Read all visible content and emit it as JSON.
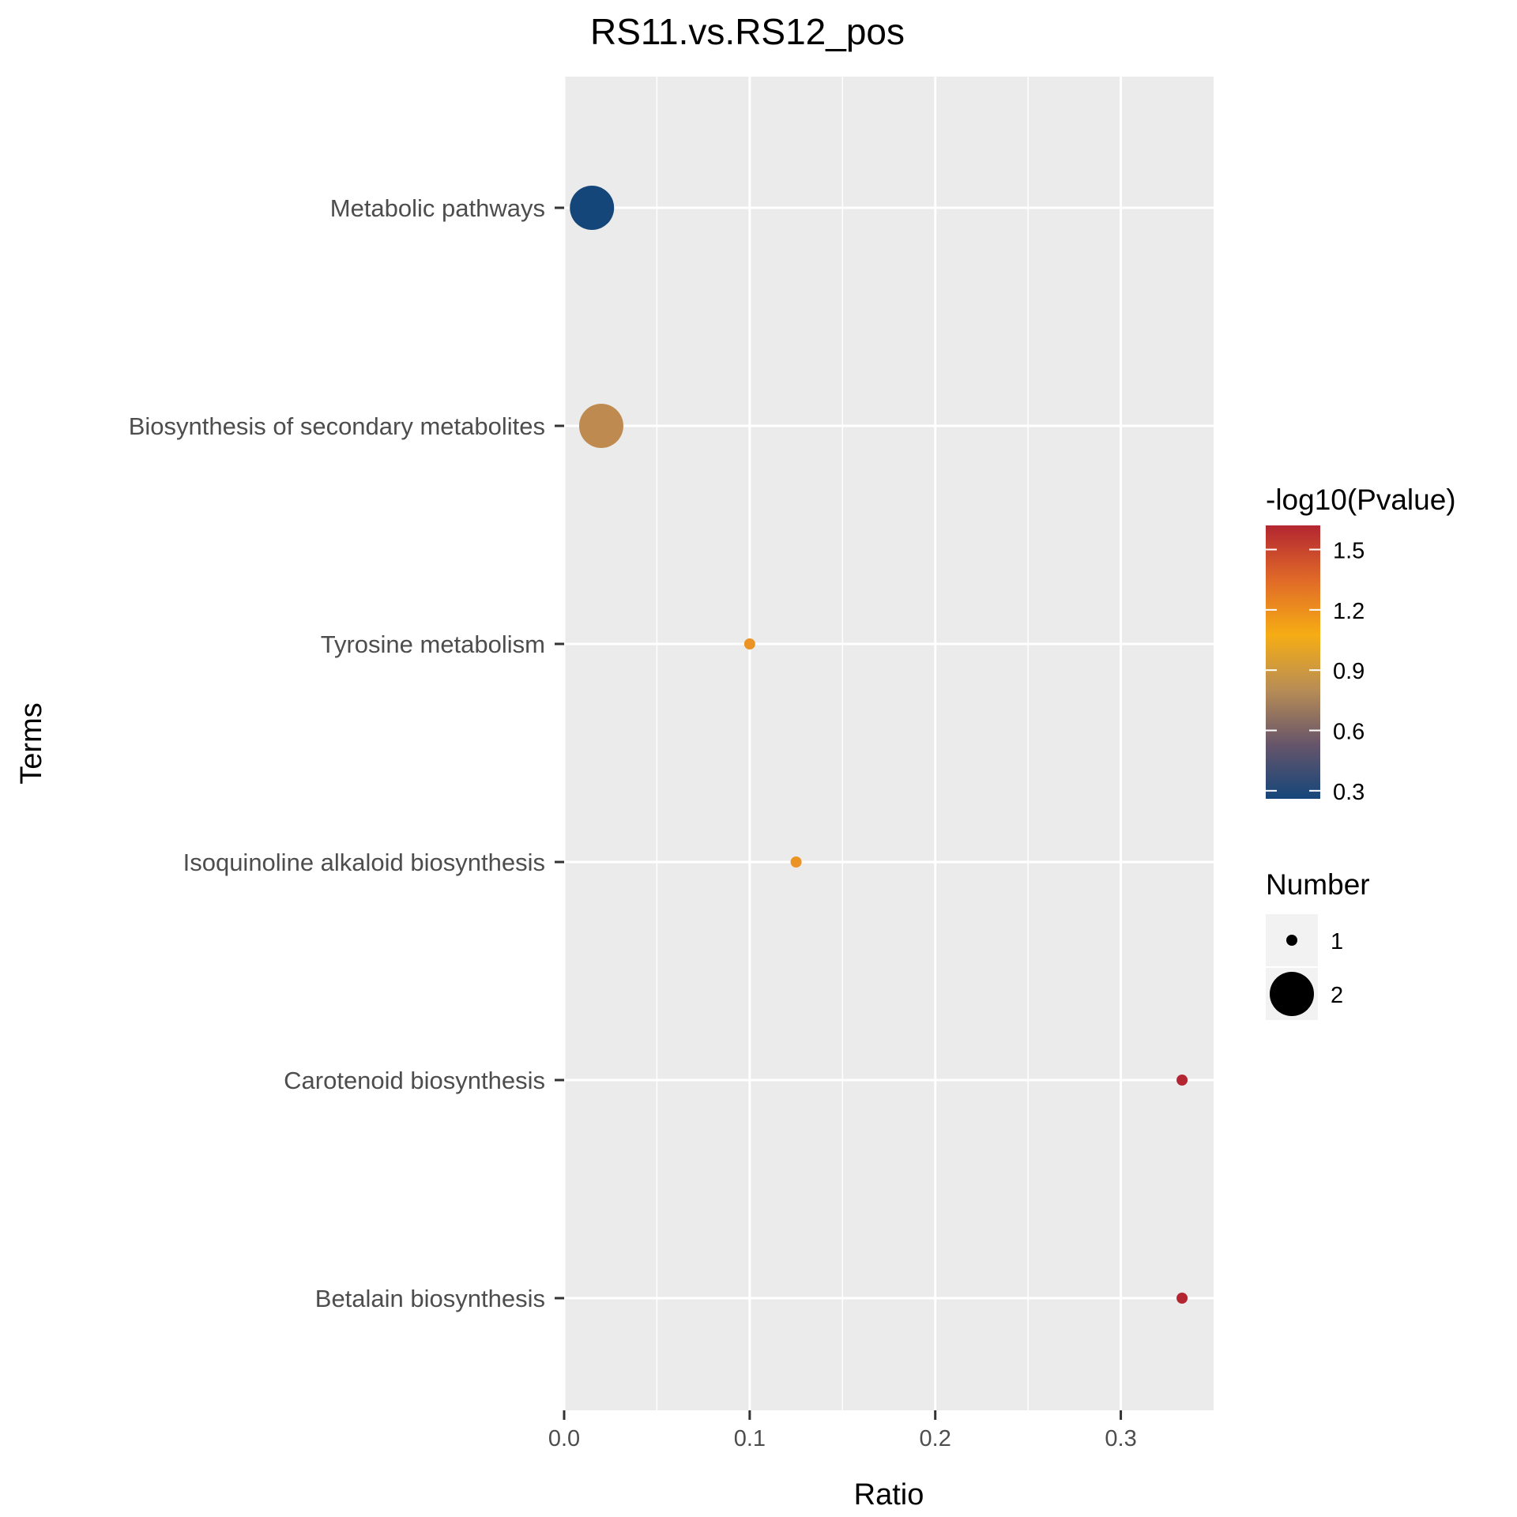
{
  "chart_data": {
    "type": "scatter",
    "title": "RS11.vs.RS12_pos",
    "xlabel": "Ratio",
    "ylabel": "Terms",
    "xlim": [
      0,
      0.35
    ],
    "x_ticks": [
      "0.0",
      "0.1",
      "0.2",
      "0.3"
    ],
    "x_tick_values": [
      0,
      0.1,
      0.2,
      0.3
    ],
    "categories": [
      "Metabolic pathways",
      "Biosynthesis of secondary metabolites",
      "Tyrosine metabolism",
      "Isoquinoline alkaloid biosynthesis",
      "Carotenoid biosynthesis",
      "Betalain biosynthesis"
    ],
    "points": [
      {
        "term": "Metabolic pathways",
        "ratio": 0.015,
        "number": 2,
        "neg_log10_p": 0.3,
        "color": "#15467a"
      },
      {
        "term": "Biosynthesis of secondary metabolites",
        "ratio": 0.02,
        "number": 2,
        "neg_log10_p": 0.75,
        "color": "#bf8a50"
      },
      {
        "term": "Tyrosine metabolism",
        "ratio": 0.1,
        "number": 1,
        "neg_log10_p": 1.2,
        "color": "#ec9325"
      },
      {
        "term": "Isoquinoline alkaloid biosynthesis",
        "ratio": 0.125,
        "number": 1,
        "neg_log10_p": 1.2,
        "color": "#ec9325"
      },
      {
        "term": "Carotenoid biosynthesis",
        "ratio": 0.333,
        "number": 1,
        "neg_log10_p": 1.6,
        "color": "#b32631"
      },
      {
        "term": "Betalain biosynthesis",
        "ratio": 0.333,
        "number": 1,
        "neg_log10_p": 1.6,
        "color": "#b32631"
      }
    ],
    "grid": true,
    "panel_background": "#ebebeb",
    "legend_position": "right",
    "color_legend": {
      "title": "-log10(Pvalue)",
      "labels": [
        "1.5",
        "1.2",
        "0.9",
        "0.6",
        "0.3"
      ],
      "values": [
        1.5,
        1.2,
        0.9,
        0.6,
        0.3
      ],
      "range": [
        0.26,
        1.62
      ],
      "gradient_colors": [
        "#b32631",
        "#e06a28",
        "#f6ad14",
        "#b88d55",
        "#67556a",
        "#15467a"
      ]
    },
    "size_legend": {
      "title": "Number",
      "labels": [
        "1",
        "2"
      ],
      "values": [
        1,
        2
      ]
    }
  }
}
